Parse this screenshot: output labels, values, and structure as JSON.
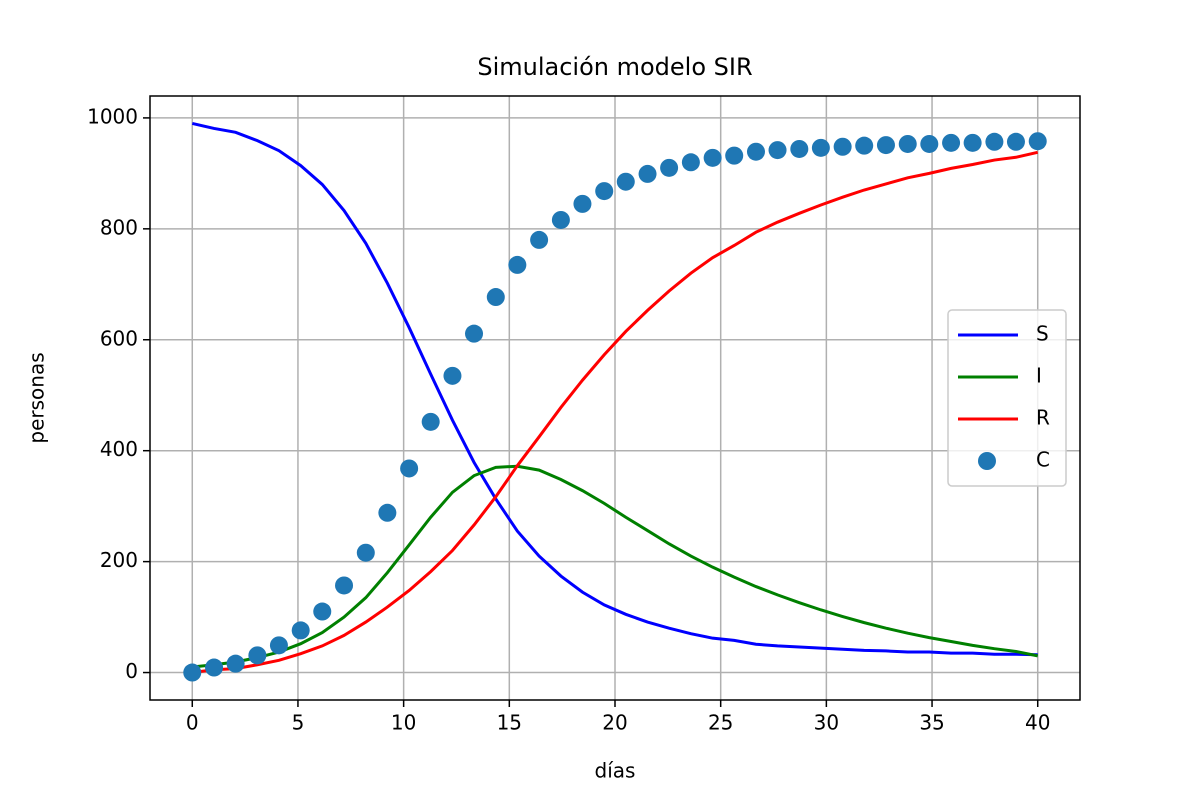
{
  "chart_data": {
    "type": "line",
    "title": "Simulación modelo SIR",
    "x_label": "días",
    "y_label": "personas",
    "x": [
      0,
      1.03,
      2.05,
      3.08,
      4.1,
      5.13,
      6.15,
      7.18,
      8.21,
      9.23,
      10.26,
      11.28,
      12.31,
      13.33,
      14.36,
      15.38,
      16.41,
      17.44,
      18.46,
      19.49,
      20.51,
      21.54,
      22.56,
      23.59,
      24.62,
      25.64,
      26.67,
      27.69,
      28.72,
      29.74,
      30.77,
      31.79,
      32.82,
      33.85,
      34.87,
      35.9,
      36.92,
      37.95,
      38.97,
      40
    ],
    "series": [
      {
        "name": "S",
        "color": "#0000ff",
        "style": "line",
        "values": [
          990,
          981,
          974,
          959,
          941,
          914,
          880,
          833,
          774,
          702,
          622,
          538,
          455,
          379,
          313,
          255,
          210,
          174,
          145,
          122,
          105,
          91,
          80,
          70,
          62,
          58,
          51,
          48,
          46,
          44,
          42,
          40,
          39,
          37,
          37,
          35,
          35,
          33,
          33,
          32
        ]
      },
      {
        "name": "I",
        "color": "#008000",
        "style": "line",
        "values": [
          10,
          14,
          19,
          27,
          37,
          52,
          72,
          100,
          135,
          180,
          230,
          280,
          325,
          355,
          370,
          372,
          365,
          348,
          328,
          305,
          280,
          256,
          232,
          210,
          190,
          172,
          155,
          140,
          126,
          113,
          101,
          90,
          80,
          71,
          63,
          56,
          49,
          43,
          38,
          30
        ]
      },
      {
        "name": "R",
        "color": "#ff0000",
        "style": "line",
        "values": [
          0,
          5,
          7,
          14,
          22,
          34,
          48,
          67,
          91,
          118,
          148,
          182,
          220,
          266,
          317,
          373,
          425,
          478,
          527,
          573,
          615,
          653,
          688,
          720,
          748,
          770,
          794,
          812,
          828,
          843,
          857,
          870,
          881,
          892,
          900,
          909,
          916,
          924,
          929,
          938
        ]
      },
      {
        "name": "C",
        "color": "#1f77b4",
        "style": "scatter",
        "values": [
          0,
          9,
          16,
          31,
          49,
          76,
          110,
          157,
          216,
          288,
          368,
          452,
          535,
          611,
          677,
          735,
          780,
          816,
          845,
          868,
          885,
          899,
          910,
          920,
          928,
          932,
          939,
          942,
          944,
          946,
          948,
          950,
          951,
          953,
          953,
          955,
          955,
          957,
          957,
          958
        ]
      }
    ],
    "xlim": [
      -2,
      42
    ],
    "xticks": [
      0,
      5,
      10,
      15,
      20,
      25,
      30,
      35,
      40
    ],
    "ylim": [
      -49.5,
      1039.5
    ],
    "yticks": [
      0,
      200,
      400,
      600,
      800,
      1000
    ],
    "grid": true,
    "legend": "center right"
  }
}
